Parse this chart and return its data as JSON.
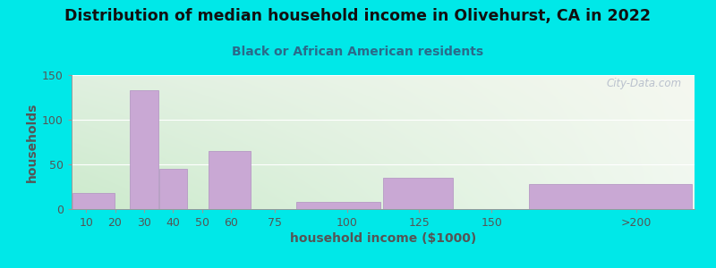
{
  "title": "Distribution of median household income in Olivehurst, CA in 2022",
  "subtitle": "Black or African American residents",
  "xlabel": "household income ($1000)",
  "ylabel": "households",
  "bar_labels": [
    "10",
    "20",
    "30",
    "40",
    "50",
    "60",
    "75",
    "100",
    "125",
    "150",
    ">200"
  ],
  "bar_values": [
    18,
    0,
    133,
    45,
    0,
    65,
    0,
    8,
    35,
    0,
    28
  ],
  "bar_color": "#c9a8d4",
  "bar_edgecolor": "#b090c0",
  "outer_bg": "#00e8e8",
  "title_color": "#111111",
  "subtitle_color": "#2a6a8a",
  "axis_label_color": "#555555",
  "tick_color": "#555555",
  "ylim": [
    0,
    150
  ],
  "yticks": [
    0,
    50,
    100,
    150
  ],
  "watermark": "City-Data.com",
  "title_fontsize": 12.5,
  "subtitle_fontsize": 10,
  "label_fontsize": 9,
  "grad_top_left": "#ddf0dd",
  "grad_top_right": "#f8f8f0",
  "grad_bottom": "#d0ecd0"
}
